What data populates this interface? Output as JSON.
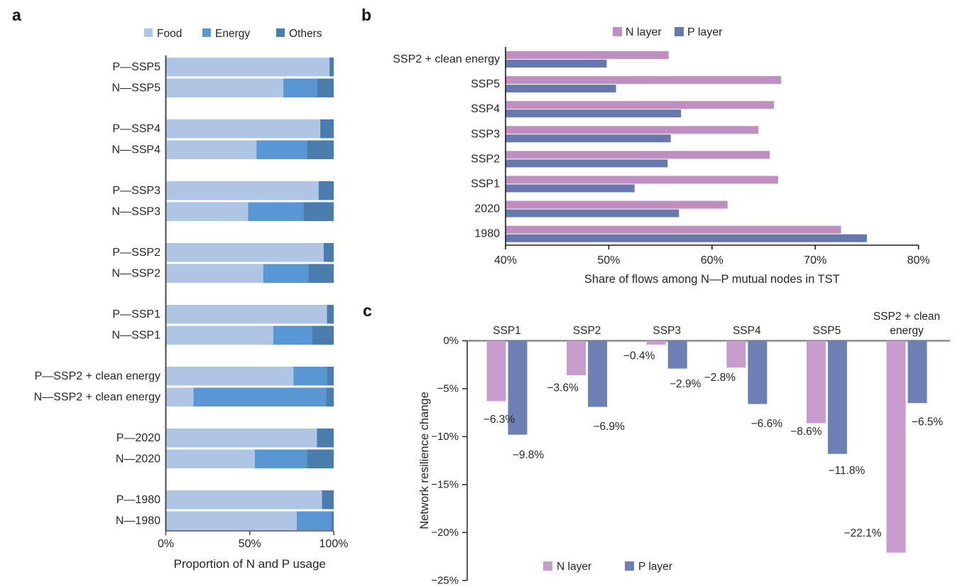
{
  "figure": {
    "panels": [
      {
        "letter": "a"
      },
      {
        "letter": "b"
      },
      {
        "letter": "c"
      }
    ]
  },
  "colors": {
    "food": "#aec6e4",
    "energy": "#5997d3",
    "others": "#4a7cad",
    "n_layer_b": "#bf8fc2",
    "p_layer_b": "#6678ad",
    "n_layer_c": "#c89dcd",
    "p_layer_c": "#6d80b3",
    "axis_dark": "#4a4a4a",
    "axis_black": "#1c1c1c",
    "zero_line_gray": "#808080",
    "text": "#262626"
  },
  "chart_data": [
    {
      "panel": "a",
      "type": "bar",
      "subtype": "stacked-horizontal",
      "xlabel": "Proportion of N and P usage",
      "x_ticks": [
        "0%",
        "50%",
        "100%"
      ],
      "xlim": [
        0,
        100
      ],
      "legend": [
        "Food",
        "Energy",
        "Others"
      ],
      "rows": [
        {
          "label": "P—SSP5",
          "values": [
            97.5,
            0,
            2.5
          ]
        },
        {
          "label": "N—SSP5",
          "values": [
            70,
            20,
            10
          ]
        },
        {
          "label": "P—SSP4",
          "values": [
            92,
            0,
            8
          ]
        },
        {
          "label": "N—SSP4",
          "values": [
            54,
            30,
            16
          ]
        },
        {
          "label": "P—SSP3",
          "values": [
            91,
            0,
            9
          ]
        },
        {
          "label": "N—SSP3",
          "values": [
            49,
            33,
            18
          ]
        },
        {
          "label": "P—SSP2",
          "values": [
            94,
            0,
            6
          ]
        },
        {
          "label": "N—SSP2",
          "values": [
            58,
            27,
            15
          ]
        },
        {
          "label": "P—SSP1",
          "values": [
            96,
            0,
            4
          ]
        },
        {
          "label": "N—SSP1",
          "values": [
            64,
            23,
            13
          ]
        },
        {
          "label": "P—SSP2 + clean energy",
          "values": [
            76,
            20,
            4
          ]
        },
        {
          "label": "N—SSP2 + clean energy",
          "values": [
            16.5,
            79,
            4.5
          ]
        },
        {
          "label": "P—2020",
          "values": [
            90,
            0,
            10
          ]
        },
        {
          "label": "N—2020",
          "values": [
            53,
            31,
            16
          ]
        },
        {
          "label": "P—1980",
          "values": [
            93,
            0,
            7
          ]
        },
        {
          "label": "N—1980",
          "values": [
            78,
            20.5,
            1.5
          ]
        }
      ]
    },
    {
      "panel": "b",
      "type": "bar",
      "subtype": "grouped-horizontal",
      "xlabel": "Share of flows among N—P mutual nodes in TST",
      "x_ticks": [
        "40%",
        "50%",
        "60%",
        "70%",
        "80%"
      ],
      "xlim": [
        40,
        80
      ],
      "legend": [
        "N layer",
        "P layer"
      ],
      "categories": [
        "SSP2 + clean energy",
        "SSP5",
        "SSP4",
        "SSP3",
        "SSP2",
        "SSP1",
        "2020",
        "1980"
      ],
      "series": [
        {
          "name": "N layer",
          "values": [
            55.8,
            66.7,
            66.0,
            64.5,
            65.6,
            66.4,
            61.5,
            72.5
          ]
        },
        {
          "name": "P layer",
          "values": [
            49.8,
            50.7,
            57.0,
            56.0,
            55.7,
            52.5,
            56.8,
            75.0
          ]
        }
      ]
    },
    {
      "panel": "c",
      "type": "bar",
      "subtype": "grouped-vertical",
      "ylabel": "Network resilience change",
      "y_ticks": [
        "0%",
        "−5%",
        "−10%",
        "−15%",
        "−20%",
        "−25%"
      ],
      "ylim": [
        0,
        -25
      ],
      "legend": [
        "N layer",
        "P layer"
      ],
      "categories": [
        "SSP1",
        "SSP2",
        "SSP3",
        "SSP4",
        "SSP5",
        "SSP2 + clean energy"
      ],
      "series": [
        {
          "name": "N layer",
          "values": [
            -6.3,
            -3.6,
            -0.4,
            -2.8,
            -8.6,
            -22.1
          ]
        },
        {
          "name": "P layer",
          "values": [
            -9.8,
            -6.9,
            -2.9,
            -6.6,
            -11.8,
            -6.5
          ]
        }
      ],
      "value_labels": [
        {
          "n": "−6.3%",
          "p": "−9.8%"
        },
        {
          "n": "−3.6%",
          "p": "−6.9%"
        },
        {
          "n": "−0.4%",
          "p": "−2.9%"
        },
        {
          "n": "−2.8%",
          "p": "−6.6%"
        },
        {
          "n": "−8.6%",
          "p": "−11.8%"
        },
        {
          "n": "−22.1%",
          "p": "−6.5%"
        }
      ]
    }
  ]
}
